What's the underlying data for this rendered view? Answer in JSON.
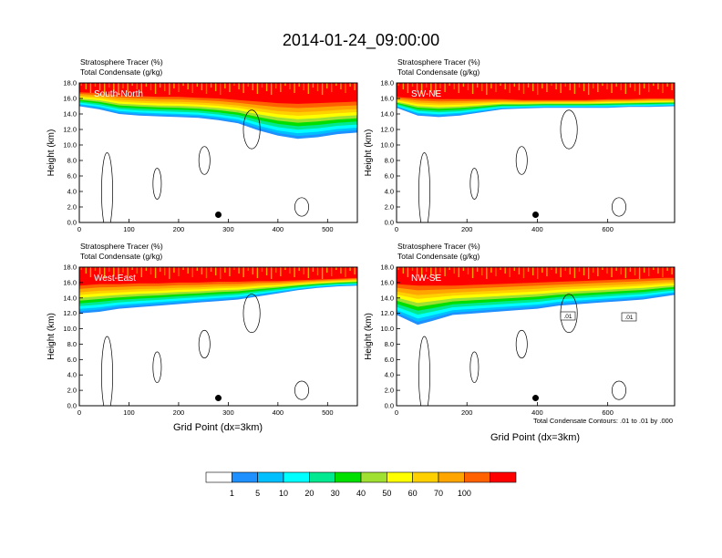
{
  "figure": {
    "title": "2014-01-24_09:00:00",
    "xlabel": "Grid Point (dx=3km)",
    "ylabel": "Height (km)",
    "var1_name": "Stratosphere Tracer",
    "var1_units": "(%)",
    "var2_name": "Total Condensate",
    "var2_units": "(g/kg)",
    "contour_note": "Total Condensate Contours: .01 to .01 by .000",
    "contour_label": ".01"
  },
  "colors": [
    "#ffffff",
    "#1e90ff",
    "#00bfff",
    "#00ffff",
    "#00e890",
    "#00e000",
    "#a0e030",
    "#ffff00",
    "#ffd000",
    "#ffa500",
    "#ff6000",
    "#ff0000"
  ],
  "colorbar": {
    "labels": [
      "1",
      "5",
      "10",
      "20",
      "30",
      "40",
      "50",
      "60",
      "70",
      "100"
    ]
  },
  "chart_data": [
    {
      "type": "heatmap",
      "panel_label": "South-North",
      "xlim": [
        0,
        560
      ],
      "ylim": [
        0,
        18
      ],
      "xticks": [
        0,
        100,
        200,
        300,
        400,
        500
      ],
      "yticks": [
        0,
        2,
        4,
        6,
        8,
        10,
        12,
        14,
        16,
        18
      ],
      "marker_x": 280,
      "marker_y": 1.0,
      "tracer_transition_km": {
        "x": [
          0,
          40,
          80,
          120,
          160,
          200,
          240,
          280,
          320,
          360,
          400,
          440,
          480,
          520,
          560
        ],
        "top": [
          16.8,
          16.7,
          16.4,
          16.3,
          16.2,
          16.2,
          16.1,
          16.0,
          15.8,
          15.6,
          15.4,
          15.3,
          15.4,
          15.5,
          15.6
        ],
        "base": [
          15.0,
          14.6,
          14.0,
          13.8,
          13.7,
          13.6,
          13.5,
          13.2,
          12.8,
          11.9,
          11.2,
          10.8,
          11.0,
          11.4,
          11.6
        ]
      }
    },
    {
      "type": "heatmap",
      "panel_label": "SW-NE",
      "xlim": [
        0,
        790
      ],
      "ylim": [
        0,
        18
      ],
      "xticks": [
        0,
        200,
        400,
        600
      ],
      "yticks": [
        0,
        2,
        4,
        6,
        8,
        10,
        12,
        14,
        16,
        18
      ],
      "marker_x": 395,
      "marker_y": 1.0,
      "tracer_transition_km": {
        "x": [
          0,
          60,
          120,
          180,
          240,
          300,
          360,
          420,
          480,
          540,
          600,
          660,
          720,
          790
        ],
        "top": [
          16.2,
          16.0,
          15.9,
          15.9,
          15.9,
          15.9,
          15.8,
          15.8,
          15.8,
          15.8,
          15.9,
          15.9,
          16.0,
          16.0
        ],
        "base": [
          14.8,
          13.8,
          13.6,
          13.8,
          14.2,
          14.6,
          14.7,
          14.8,
          14.8,
          14.8,
          14.8,
          14.9,
          14.9,
          15.0
        ]
      }
    },
    {
      "type": "heatmap",
      "panel_label": "West-East",
      "xlim": [
        0,
        560
      ],
      "ylim": [
        0,
        18
      ],
      "xticks": [
        0,
        100,
        200,
        300,
        400,
        500
      ],
      "yticks": [
        0,
        2,
        4,
        6,
        8,
        10,
        12,
        14,
        16,
        18
      ],
      "marker_x": 280,
      "marker_y": 1.0,
      "tracer_transition_km": {
        "x": [
          0,
          40,
          80,
          120,
          160,
          200,
          240,
          280,
          320,
          360,
          400,
          440,
          480,
          520,
          560
        ],
        "top": [
          15.6,
          15.8,
          15.8,
          15.9,
          15.9,
          16.0,
          16.0,
          16.1,
          16.1,
          16.2,
          16.2,
          16.3,
          16.4,
          16.5,
          16.6
        ],
        "base": [
          12.0,
          12.2,
          12.6,
          12.8,
          13.0,
          13.2,
          13.4,
          13.6,
          13.8,
          14.2,
          14.6,
          15.0,
          15.3,
          15.5,
          15.6
        ]
      }
    },
    {
      "type": "heatmap",
      "panel_label": "NW-SE",
      "xlim": [
        0,
        790
      ],
      "ylim": [
        0,
        18
      ],
      "xticks": [
        0,
        200,
        400,
        600
      ],
      "yticks": [
        0,
        2,
        4,
        6,
        8,
        10,
        12,
        14,
        16,
        18
      ],
      "marker_x": 395,
      "marker_y": 1.0,
      "tracer_transition_km": {
        "x": [
          0,
          60,
          100,
          160,
          220,
          280,
          340,
          400,
          460,
          520,
          580,
          640,
          700,
          760,
          790
        ],
        "top": [
          15.8,
          15.6,
          15.6,
          15.6,
          15.7,
          15.8,
          15.9,
          16.0,
          16.1,
          16.2,
          16.3,
          16.4,
          16.5,
          16.6,
          16.6
        ],
        "base": [
          11.8,
          10.5,
          11.0,
          11.8,
          12.0,
          12.2,
          12.4,
          12.6,
          13.0,
          13.2,
          13.4,
          13.6,
          13.8,
          14.2,
          14.4
        ]
      }
    }
  ]
}
